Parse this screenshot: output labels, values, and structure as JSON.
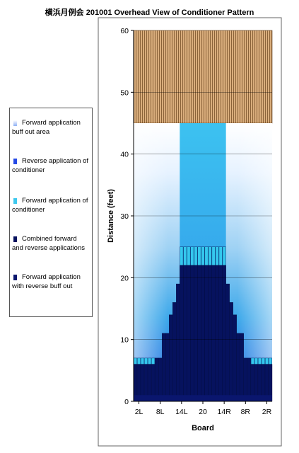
{
  "colors": {
    "buff_out": "#8fb0f4",
    "reverse": "#2449e6",
    "forward": "#3cc8ee",
    "combined": "#06125e",
    "reverse_buff": "#0a166e",
    "oil_free": "#c59a6a",
    "frame": "#666666"
  },
  "legend": [
    {
      "label": "Forward application buff out area",
      "color_key": "buff_out"
    },
    {
      "label": "Reverse application of conditioner",
      "color_key": "reverse"
    },
    {
      "label": "Forward application of conditioner",
      "color_key": "forward"
    },
    {
      "label": "Combined forward and reverse applications",
      "color_key": "combined"
    },
    {
      "label": "Forward application with reverse buff out",
      "color_key": "reverse_buff"
    }
  ],
  "chart_data": {
    "type": "bar",
    "title": "横浜月例会 201001 Overhead View of Conditioner Pattern",
    "xlabel": "Board",
    "ylabel": "Distance (feet)",
    "ylim": [
      0,
      60
    ],
    "yticks": [
      0,
      10,
      20,
      30,
      40,
      50,
      60
    ],
    "xticks": [
      "2L",
      "8L",
      "14L",
      "20",
      "14R",
      "8R",
      "2R"
    ],
    "xtick_boards": [
      2,
      8,
      14,
      20,
      26,
      32,
      38
    ],
    "boards": [
      1,
      2,
      3,
      4,
      5,
      6,
      7,
      8,
      9,
      10,
      11,
      12,
      13,
      14,
      15,
      16,
      17,
      18,
      19,
      20,
      21,
      22,
      23,
      24,
      25,
      26,
      27,
      28,
      29,
      30,
      31,
      32,
      33,
      34,
      35,
      36,
      37,
      38,
      39
    ],
    "combined_length": [
      6,
      6,
      6,
      6,
      6,
      6,
      7,
      7,
      11,
      11,
      14,
      16,
      19,
      22,
      22,
      22,
      22,
      22,
      22,
      22,
      22,
      22,
      22,
      22,
      22,
      22,
      19,
      16,
      14,
      11,
      11,
      7,
      7,
      6,
      6,
      6,
      6,
      6,
      6
    ],
    "forward_band": [
      7,
      7,
      7,
      7,
      7,
      7,
      0,
      0,
      0,
      0,
      0,
      0,
      0,
      25,
      25,
      25,
      25,
      25,
      25,
      25,
      25,
      25,
      25,
      25,
      25,
      25,
      0,
      0,
      0,
      0,
      0,
      0,
      0,
      7,
      7,
      7,
      7,
      7,
      7
    ],
    "forward_buff_length": 45,
    "oil_free_range": [
      45,
      60
    ],
    "series": [
      {
        "name": "Forward application buff out area"
      },
      {
        "name": "Reverse application of conditioner"
      },
      {
        "name": "Forward application of conditioner"
      },
      {
        "name": "Combined forward and reverse applications"
      },
      {
        "name": "Forward application with reverse buff out"
      }
    ]
  }
}
